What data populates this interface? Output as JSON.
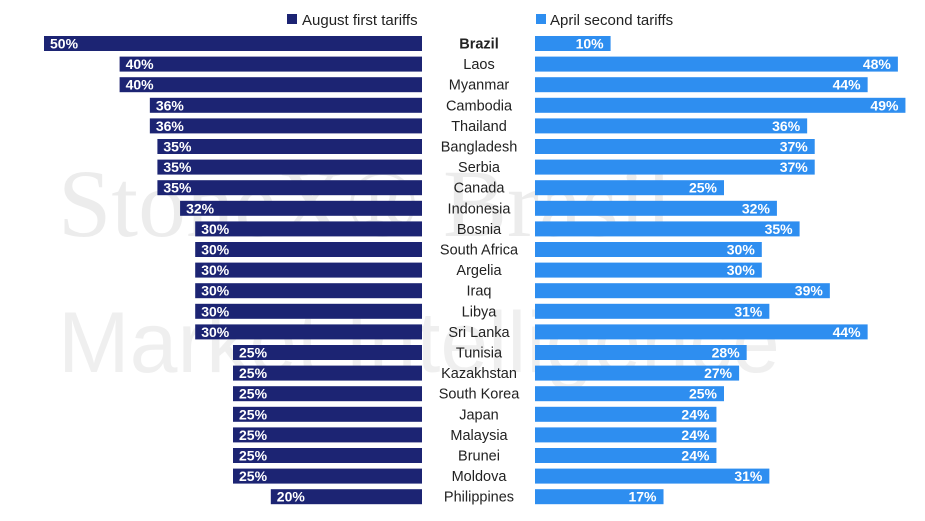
{
  "chart_data": {
    "type": "bar",
    "orientation": "horizontal",
    "layout": "butterfly",
    "highlighted_category": "Brazil",
    "legend_position": "top",
    "categories": [
      "Brazil",
      "Laos",
      "Myanmar",
      "Cambodia",
      "Thailand",
      "Bangladesh",
      "Serbia",
      "Canada",
      "Indonesia",
      "Bosnia",
      "South Africa",
      "Argelia",
      "Iraq",
      "Libya",
      "Sri Lanka",
      "Tunisia",
      "Kazakhstan",
      "South Korea",
      "Japan",
      "Malaysia",
      "Brunei",
      "Moldova",
      "Philippines"
    ],
    "series": [
      {
        "name": "August first tariffs",
        "color": "#1c2473",
        "side": "left",
        "values": [
          50,
          40,
          40,
          36,
          36,
          35,
          35,
          35,
          32,
          30,
          30,
          30,
          30,
          30,
          30,
          25,
          25,
          25,
          25,
          25,
          25,
          25,
          20
        ]
      },
      {
        "name": "April second tariffs",
        "color": "#2e8ef0",
        "side": "right",
        "values": [
          10,
          48,
          44,
          49,
          36,
          37,
          37,
          25,
          32,
          35,
          30,
          30,
          39,
          31,
          44,
          28,
          27,
          25,
          24,
          24,
          24,
          31,
          17
        ]
      }
    ],
    "value_suffix": "%",
    "xlim": [
      0,
      50
    ]
  },
  "watermark": {
    "line1": "StoneX® Brasil",
    "line2": "Market Intelligence"
  }
}
